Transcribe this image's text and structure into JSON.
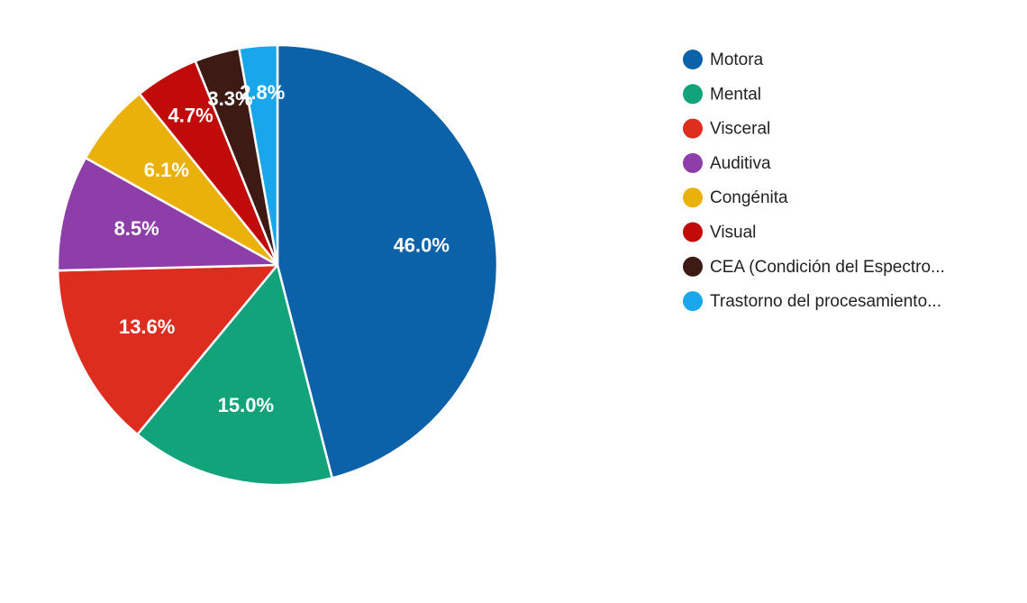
{
  "chart_data": {
    "type": "pie",
    "legend_position": "right",
    "slices": [
      {
        "label": "Motora",
        "value": 46.0,
        "value_label": "46.0%",
        "color": "#0b62a8"
      },
      {
        "label": "Mental",
        "value": 15.0,
        "value_label": "15.0%",
        "color": "#13a37b"
      },
      {
        "label": "Visceral",
        "value": 13.6,
        "value_label": "13.6%",
        "color": "#dd2d1f"
      },
      {
        "label": "Auditiva",
        "value": 8.5,
        "value_label": "8.5%",
        "color": "#8e3ea9"
      },
      {
        "label": "Congénita",
        "value": 6.1,
        "value_label": "6.1%",
        "color": "#eab10b"
      },
      {
        "label": "Visual",
        "value": 4.7,
        "value_label": "4.7%",
        "color": "#c10b0b"
      },
      {
        "label": "CEA (Condición del Espectro...",
        "value": 3.3,
        "value_label": "3.3%",
        "color": "#3d1b14"
      },
      {
        "label": "Trastorno del procesamiento...",
        "value": 2.8,
        "value_label": "2.8%",
        "color": "#1aa6ea"
      }
    ]
  }
}
